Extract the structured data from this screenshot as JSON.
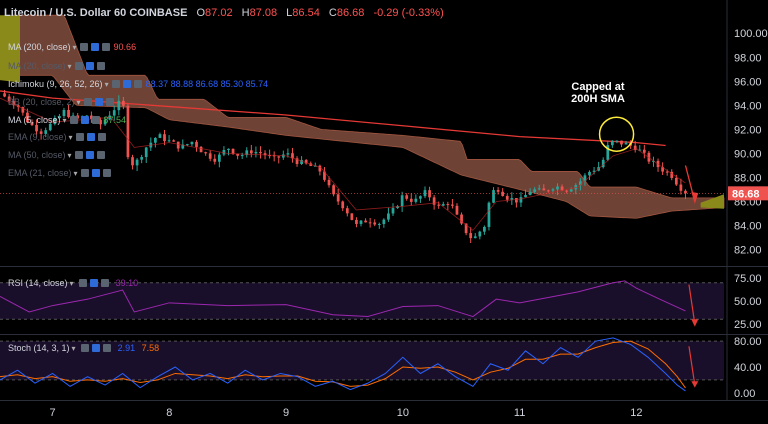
{
  "header": {
    "symbol": "Litecoin / U.S. Dollar",
    "interval": "60",
    "exchange": "COINBASE",
    "open_label": "O",
    "open": "87.02",
    "high_label": "H",
    "high": "87.08",
    "low_label": "L",
    "low": "86.54",
    "close_label": "C",
    "close": "86.68",
    "change": "-0.29 (-0.33%)"
  },
  "indicators": [
    {
      "label": "MA (200, close)",
      "value": "90.66",
      "color": "#ff5252",
      "dim": false
    },
    {
      "label": "MA (20, close)",
      "value": "",
      "color": "#555a66",
      "dim": true
    },
    {
      "label": "Ichimoku (9, 26, 52, 26)",
      "value": "88.37  88.88  86.68  85.30  85.74",
      "color": "#2962ff",
      "dim": false
    },
    {
      "label": "BB (20, close, 2)",
      "value": "",
      "color": "#555a66",
      "dim": true
    },
    {
      "label": "MA (5, close)",
      "value": "87.54",
      "color": "#4caf50",
      "dim": false
    },
    {
      "label": "EMA (9, close)",
      "value": "",
      "color": "#555a66",
      "dim": true
    },
    {
      "label": "MA (50, close)",
      "value": "",
      "color": "#555a66",
      "dim": true
    },
    {
      "label": "EMA (21, close)",
      "value": "",
      "color": "#555a66",
      "dim": true
    }
  ],
  "annotation": "Capped at 200H SMA",
  "rsi_panel": {
    "label": "RSI (14, close)",
    "value": "39.10"
  },
  "stoch_panel": {
    "label": "Stoch (14, 3, 1)",
    "k": "2.91",
    "d": "7.58"
  },
  "price_badge": "86.68",
  "colors": {
    "up": "#26a69a",
    "down": "#ef5350",
    "ma200": "#e53935",
    "cloud": "#7a4a3c",
    "rsi": "#9c27b0",
    "stoch_k": "#2962ff",
    "stoch_d": "#ff6d00",
    "panel_bg": "#1a0f2a"
  },
  "chart_data": {
    "type": "candlestick",
    "price_axis_ticks": [
      "100.00",
      "98.00",
      "96.00",
      "94.00",
      "92.00",
      "90.00",
      "88.00",
      "86.00",
      "84.00",
      "82.00"
    ],
    "price_ylim": [
      80.8,
      101.6
    ],
    "time_ticks": [
      "7",
      "8",
      "9",
      "10",
      "11",
      "12"
    ],
    "x_days": [
      6.55,
      12.75
    ],
    "last_price": 86.68,
    "close_path": [
      [
        6.55,
        95.0
      ],
      [
        6.7,
        94.0
      ],
      [
        6.8,
        92.5
      ],
      [
        6.9,
        91.8
      ],
      [
        7.0,
        92.5
      ],
      [
        7.1,
        93.5
      ],
      [
        7.2,
        92.8
      ],
      [
        7.3,
        93.2
      ],
      [
        7.4,
        92.3
      ],
      [
        7.5,
        93.4
      ],
      [
        7.6,
        94.5
      ],
      [
        7.65,
        89.5
      ],
      [
        7.7,
        89.0
      ],
      [
        7.8,
        90.5
      ],
      [
        7.9,
        91.5
      ],
      [
        8.0,
        91.0
      ],
      [
        8.1,
        90.5
      ],
      [
        8.2,
        91.0
      ],
      [
        8.3,
        90.0
      ],
      [
        8.4,
        89.5
      ],
      [
        8.5,
        90.5
      ],
      [
        8.6,
        89.8
      ],
      [
        8.7,
        90.2
      ],
      [
        8.8,
        90.0
      ],
      [
        8.9,
        89.5
      ],
      [
        9.0,
        90.0
      ],
      [
        9.1,
        89.3
      ],
      [
        9.2,
        89.0
      ],
      [
        9.3,
        88.5
      ],
      [
        9.4,
        86.5
      ],
      [
        9.5,
        85.5
      ],
      [
        9.6,
        84.0
      ],
      [
        9.7,
        84.5
      ],
      [
        9.8,
        84.2
      ],
      [
        9.9,
        85.0
      ],
      [
        10.0,
        86.5
      ],
      [
        10.1,
        86.0
      ],
      [
        10.2,
        86.8
      ],
      [
        10.3,
        85.5
      ],
      [
        10.4,
        86.0
      ],
      [
        10.5,
        84.0
      ],
      [
        10.6,
        82.8
      ],
      [
        10.7,
        84.0
      ],
      [
        10.75,
        86.5
      ],
      [
        10.8,
        87.2
      ],
      [
        10.9,
        86.3
      ],
      [
        11.0,
        86.0
      ],
      [
        11.1,
        87.0
      ],
      [
        11.2,
        86.8
      ],
      [
        11.3,
        87.3
      ],
      [
        11.4,
        87.0
      ],
      [
        11.5,
        87.5
      ],
      [
        11.6,
        88.5
      ],
      [
        11.7,
        89.0
      ],
      [
        11.75,
        90.5
      ],
      [
        11.8,
        91.0
      ],
      [
        11.9,
        90.8
      ],
      [
        12.0,
        90.5
      ],
      [
        12.1,
        89.5
      ],
      [
        12.2,
        88.8
      ],
      [
        12.3,
        88.2
      ],
      [
        12.35,
        87.5
      ],
      [
        12.42,
        86.68
      ]
    ],
    "ma200": [
      [
        6.55,
        95.2
      ],
      [
        7.0,
        94.6
      ],
      [
        8.0,
        93.9
      ],
      [
        9.0,
        93.2
      ],
      [
        10.0,
        92.3
      ],
      [
        11.0,
        91.4
      ],
      [
        12.0,
        90.9
      ],
      [
        12.25,
        90.66
      ]
    ],
    "ma5": [
      [
        6.55,
        94.6
      ],
      [
        7.0,
        92.6
      ],
      [
        7.5,
        93.0
      ],
      [
        7.7,
        90.5
      ],
      [
        8.0,
        90.9
      ],
      [
        8.5,
        90.0
      ],
      [
        9.0,
        89.8
      ],
      [
        9.3,
        88.8
      ],
      [
        9.6,
        85.3
      ],
      [
        10.0,
        85.6
      ],
      [
        10.3,
        85.9
      ],
      [
        10.6,
        83.6
      ],
      [
        10.8,
        86.0
      ],
      [
        11.0,
        86.2
      ],
      [
        11.5,
        87.2
      ],
      [
        11.8,
        89.8
      ],
      [
        12.0,
        90.4
      ],
      [
        12.2,
        89.0
      ],
      [
        12.42,
        87.54
      ]
    ],
    "cloud_top": [
      [
        6.65,
        101.5
      ],
      [
        7.1,
        101.5
      ],
      [
        7.3,
        96.5
      ],
      [
        7.8,
        96.5
      ],
      [
        7.9,
        94.5
      ],
      [
        8.3,
        94.5
      ],
      [
        8.5,
        93.0
      ],
      [
        9.0,
        93.0
      ],
      [
        9.3,
        92.0
      ],
      [
        10.0,
        91.5
      ],
      [
        10.5,
        91.0
      ],
      [
        10.55,
        89.5
      ],
      [
        11.0,
        89.5
      ],
      [
        11.1,
        88.5
      ],
      [
        11.5,
        88.5
      ],
      [
        11.6,
        87.2
      ],
      [
        12.0,
        87.2
      ],
      [
        12.3,
        86.3
      ],
      [
        12.75,
        86.3
      ]
    ],
    "cloud_bot": [
      [
        6.65,
        96.5
      ],
      [
        7.0,
        96.5
      ],
      [
        7.2,
        94.0
      ],
      [
        7.8,
        93.8
      ],
      [
        8.0,
        92.8
      ],
      [
        8.5,
        92.2
      ],
      [
        9.0,
        91.5
      ],
      [
        9.5,
        91.0
      ],
      [
        10.0,
        90.5
      ],
      [
        10.5,
        88.2
      ],
      [
        11.0,
        87.0
      ],
      [
        11.4,
        86.0
      ],
      [
        11.6,
        84.8
      ],
      [
        12.0,
        84.6
      ],
      [
        12.3,
        85.2
      ],
      [
        12.75,
        85.5
      ]
    ],
    "kumo_future_top": [
      [
        12.55,
        85.9
      ],
      [
        12.75,
        86.6
      ]
    ],
    "rsi": {
      "ticks": [
        "75.00",
        "50.00",
        "25.00"
      ],
      "ylim": [
        15,
        85
      ],
      "bands": [
        70,
        30
      ],
      "values": [
        [
          6.55,
          55
        ],
        [
          6.8,
          38
        ],
        [
          7.0,
          45
        ],
        [
          7.3,
          52
        ],
        [
          7.6,
          62
        ],
        [
          7.7,
          38
        ],
        [
          8.0,
          48
        ],
        [
          8.5,
          45
        ],
        [
          9.0,
          46
        ],
        [
          9.4,
          35
        ],
        [
          9.7,
          33
        ],
        [
          10.0,
          44
        ],
        [
          10.3,
          45
        ],
        [
          10.6,
          33
        ],
        [
          10.8,
          52
        ],
        [
          11.0,
          48
        ],
        [
          11.5,
          60
        ],
        [
          11.8,
          70
        ],
        [
          11.9,
          72
        ],
        [
          12.0,
          64
        ],
        [
          12.2,
          52
        ],
        [
          12.42,
          39.1
        ]
      ]
    },
    "stoch": {
      "ticks": [
        "80.00",
        "40.00",
        "0.00"
      ],
      "ylim": [
        -8,
        88
      ],
      "bands": [
        80,
        20
      ],
      "k": [
        [
          6.55,
          20
        ],
        [
          6.7,
          35
        ],
        [
          6.85,
          15
        ],
        [
          7.0,
          30
        ],
        [
          7.15,
          10
        ],
        [
          7.3,
          25
        ],
        [
          7.45,
          12
        ],
        [
          7.6,
          30
        ],
        [
          7.75,
          8
        ],
        [
          7.9,
          25
        ],
        [
          8.05,
          40
        ],
        [
          8.2,
          20
        ],
        [
          8.35,
          30
        ],
        [
          8.5,
          15
        ],
        [
          8.65,
          35
        ],
        [
          8.8,
          20
        ],
        [
          8.95,
          30
        ],
        [
          9.1,
          25
        ],
        [
          9.25,
          10
        ],
        [
          9.4,
          18
        ],
        [
          9.55,
          5
        ],
        [
          9.7,
          15
        ],
        [
          9.85,
          30
        ],
        [
          10.0,
          55
        ],
        [
          10.15,
          30
        ],
        [
          10.3,
          45
        ],
        [
          10.45,
          25
        ],
        [
          10.6,
          10
        ],
        [
          10.75,
          45
        ],
        [
          10.9,
          35
        ],
        [
          11.05,
          65
        ],
        [
          11.2,
          45
        ],
        [
          11.35,
          70
        ],
        [
          11.5,
          55
        ],
        [
          11.65,
          80
        ],
        [
          11.8,
          85
        ],
        [
          11.95,
          75
        ],
        [
          12.1,
          55
        ],
        [
          12.25,
          30
        ],
        [
          12.35,
          12
        ],
        [
          12.42,
          2.91
        ]
      ],
      "d": [
        [
          6.55,
          25
        ],
        [
          6.7,
          28
        ],
        [
          6.85,
          22
        ],
        [
          7.0,
          25
        ],
        [
          7.15,
          18
        ],
        [
          7.3,
          20
        ],
        [
          7.45,
          18
        ],
        [
          7.6,
          22
        ],
        [
          7.75,
          16
        ],
        [
          7.9,
          20
        ],
        [
          8.05,
          30
        ],
        [
          8.2,
          28
        ],
        [
          8.35,
          26
        ],
        [
          8.5,
          22
        ],
        [
          8.65,
          28
        ],
        [
          8.8,
          25
        ],
        [
          8.95,
          26
        ],
        [
          9.1,
          26
        ],
        [
          9.25,
          18
        ],
        [
          9.4,
          17
        ],
        [
          9.55,
          10
        ],
        [
          9.7,
          12
        ],
        [
          9.85,
          22
        ],
        [
          10.0,
          40
        ],
        [
          10.15,
          38
        ],
        [
          10.3,
          40
        ],
        [
          10.45,
          32
        ],
        [
          10.6,
          20
        ],
        [
          10.75,
          32
        ],
        [
          10.9,
          38
        ],
        [
          11.05,
          52
        ],
        [
          11.2,
          52
        ],
        [
          11.35,
          60
        ],
        [
          11.5,
          60
        ],
        [
          11.65,
          70
        ],
        [
          11.8,
          78
        ],
        [
          11.95,
          80
        ],
        [
          12.1,
          68
        ],
        [
          12.25,
          45
        ],
        [
          12.35,
          25
        ],
        [
          12.42,
          7.58
        ]
      ]
    }
  }
}
